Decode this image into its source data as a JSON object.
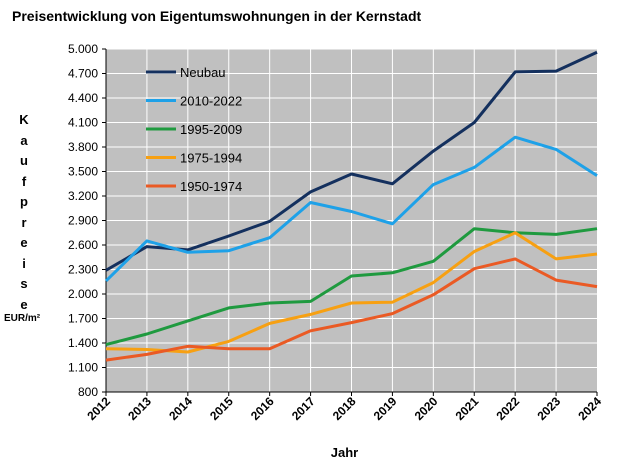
{
  "chart_data": {
    "type": "line",
    "title": "Preisentwicklung von Eigentumswohnungen in der Kernstadt",
    "xlabel": "Jahr",
    "ylabel": "Kaufpreise",
    "yunit": "EUR/m²",
    "ylim": [
      800,
      5000
    ],
    "yticks": [
      "800",
      "1.100",
      "1.400",
      "1.700",
      "2.000",
      "2.300",
      "2.600",
      "2.900",
      "3.200",
      "3.500",
      "3.800",
      "4.100",
      "4.400",
      "4.700",
      "5.000"
    ],
    "grid": true,
    "legend_position": "top-left",
    "x": [
      "2012",
      "2013",
      "2014",
      "2015",
      "2016",
      "2017",
      "2018",
      "2019",
      "2020",
      "2021",
      "2022",
      "2023",
      "2024"
    ],
    "series": [
      {
        "name": "Neubau",
        "color": "#14305e",
        "values": [
          2290,
          2580,
          2540,
          2710,
          2890,
          3250,
          3470,
          3350,
          3750,
          4100,
          4720,
          4730,
          4960
        ]
      },
      {
        "name": "2010-2022",
        "color": "#1ea1e8",
        "values": [
          2160,
          2650,
          2510,
          2530,
          2690,
          3120,
          3010,
          2860,
          3340,
          3550,
          3920,
          3770,
          3450
        ]
      },
      {
        "name": "1995-2009",
        "color": "#1f9a3f",
        "values": [
          1380,
          1510,
          1670,
          1830,
          1890,
          1910,
          2220,
          2260,
          2400,
          2800,
          2750,
          2730,
          2800
        ]
      },
      {
        "name": "1975-1994",
        "color": "#f7a012",
        "values": [
          1330,
          1320,
          1290,
          1420,
          1640,
          1750,
          1890,
          1900,
          2140,
          2520,
          2750,
          2430,
          2490
        ]
      },
      {
        "name": "1950-1974",
        "color": "#ea5a24",
        "values": [
          1190,
          1260,
          1360,
          1330,
          1330,
          1550,
          1650,
          1760,
          1990,
          2310,
          2430,
          2170,
          2090
        ]
      }
    ]
  }
}
